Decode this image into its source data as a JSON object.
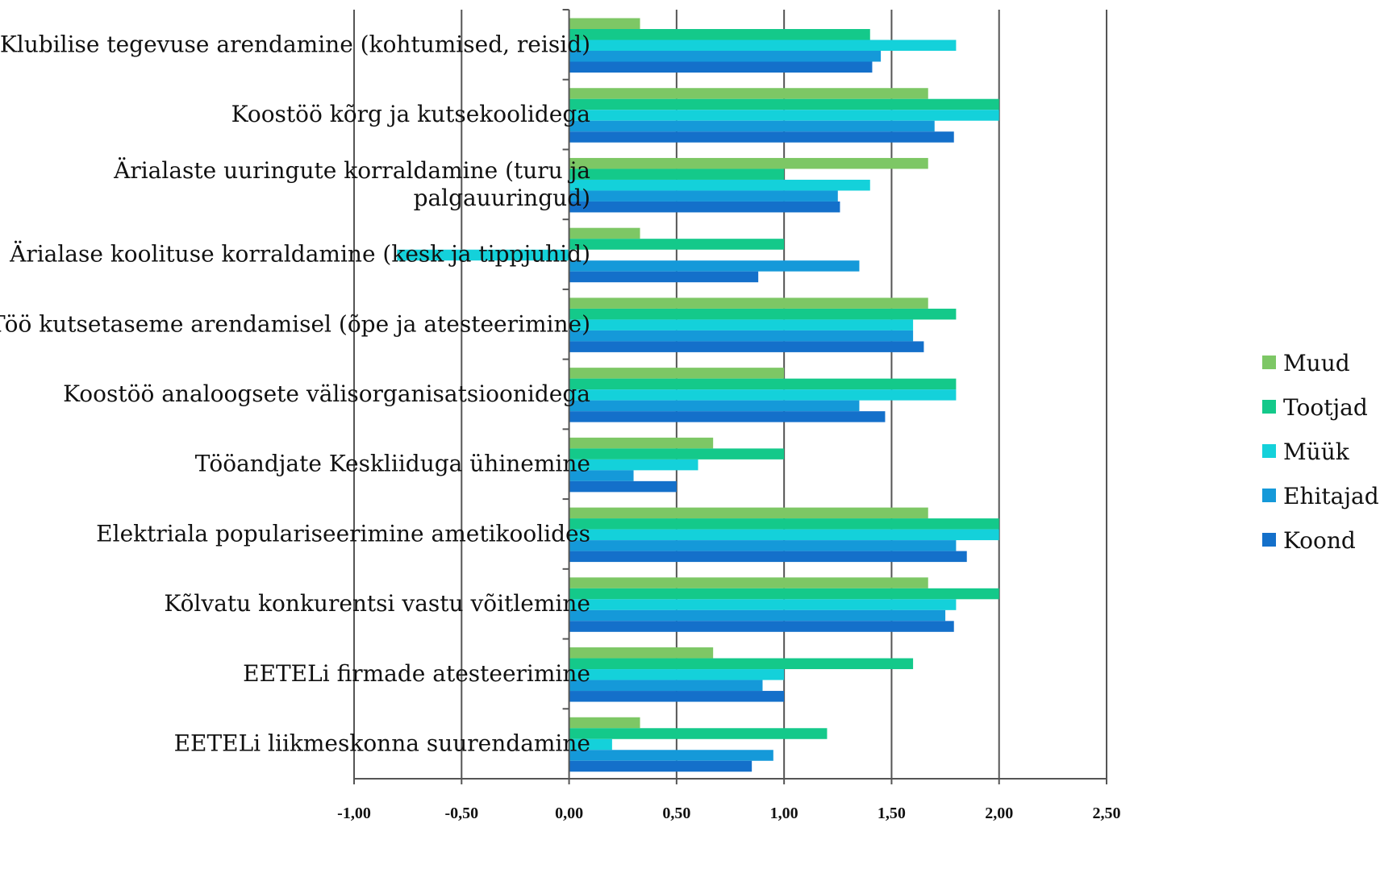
{
  "chart_data": {
    "type": "bar",
    "orientation": "horizontal",
    "title": "",
    "xlabel": "",
    "ylabel": "",
    "xlim": [
      -1.0,
      2.5
    ],
    "x_ticks": [
      -1.0,
      -0.5,
      0.0,
      0.5,
      1.0,
      1.5,
      2.0,
      2.5
    ],
    "x_tick_labels": [
      "-1,00",
      "-0,50",
      "0,00",
      "0,50",
      "1,00",
      "1,50",
      "2,00",
      "2,50"
    ],
    "grid": "vertical",
    "legend_position": "right",
    "categories": [
      [
        "Klubilise tegevuse arendamine (kohtumised, reisid)"
      ],
      [
        "Koostöö kõrg  ja kutsekoolidega"
      ],
      [
        "Ärialaste uuringute korraldamine (turu   ja",
        "palgauuringud)"
      ],
      [
        "Ärialase koolituse korraldamine (kesk  ja tippjuhid)"
      ],
      [
        "Töö kutsetaseme arendamisel (õpe ja atesteerimine)"
      ],
      [
        "Koostöö analoogsete välisorganisatsioonidega"
      ],
      [
        "Tööandjate Keskliiduga ühinemine"
      ],
      [
        "Elektriala populariseerimine ametikoolides"
      ],
      [
        "Kõlvatu konkurentsi vastu võitlemine"
      ],
      [
        "EETELi firmade atesteerimine"
      ],
      [
        "EETELi liikmeskonna suurendamine"
      ]
    ],
    "series": [
      {
        "name": "Muud",
        "color": "#7dc765",
        "values": [
          0.33,
          1.67,
          1.67,
          0.33,
          1.67,
          1.0,
          0.67,
          1.67,
          1.67,
          0.67,
          0.33
        ]
      },
      {
        "name": "Tootjad",
        "color": "#14c98a",
        "values": [
          1.4,
          2.0,
          1.0,
          1.0,
          1.8,
          1.8,
          1.0,
          2.0,
          2.0,
          1.6,
          1.2
        ]
      },
      {
        "name": "Müük",
        "color": "#14d1da",
        "values": [
          1.8,
          2.0,
          1.4,
          -0.8,
          1.6,
          1.8,
          0.6,
          2.0,
          1.8,
          1.0,
          0.2
        ]
      },
      {
        "name": "Ehitajad",
        "color": "#1599d9",
        "values": [
          1.45,
          1.7,
          1.25,
          1.35,
          1.6,
          1.35,
          0.3,
          1.8,
          1.75,
          0.9,
          0.95
        ]
      },
      {
        "name": "Koond",
        "color": "#1470ca",
        "values": [
          1.41,
          1.79,
          1.26,
          0.88,
          1.65,
          1.47,
          0.5,
          1.85,
          1.79,
          1.0,
          0.85
        ]
      }
    ]
  }
}
